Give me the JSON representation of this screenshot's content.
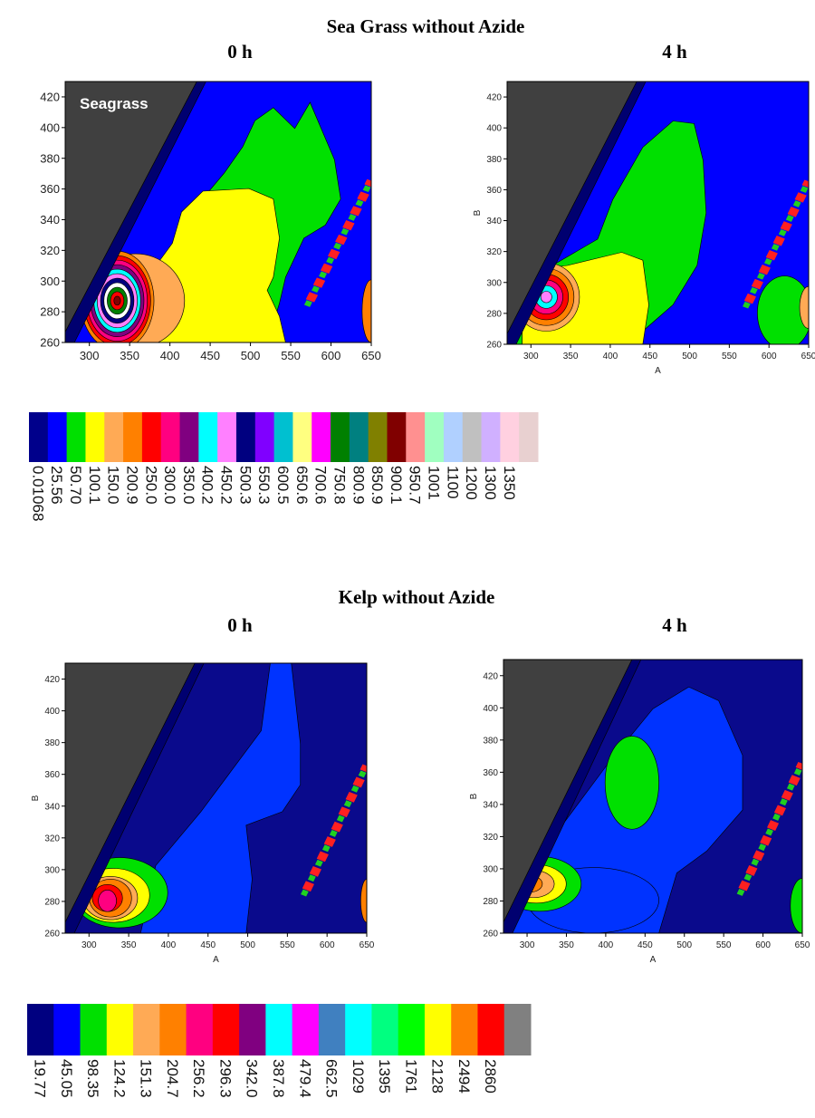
{
  "sections": [
    {
      "title": "Sea Grass without Azide",
      "panels": [
        {
          "title": "0 h",
          "annotation": "Seagrass",
          "xlim": [
            270,
            650
          ],
          "ylim": [
            260,
            430
          ],
          "xticks": [
            300,
            350,
            400,
            450,
            500,
            550,
            600,
            650
          ],
          "yticks": [
            260,
            280,
            300,
            320,
            340,
            360,
            380,
            400,
            420
          ]
        },
        {
          "title": "4 h",
          "xlabel": "A",
          "ylabel": "B",
          "xlim": [
            270,
            650
          ],
          "ylim": [
            260,
            430
          ],
          "xticks": [
            300,
            350,
            400,
            450,
            500,
            550,
            600,
            650
          ],
          "yticks": [
            260,
            280,
            300,
            320,
            340,
            360,
            380,
            400,
            420
          ]
        }
      ],
      "colorbar": {
        "colors": [
          "#00008b",
          "#0000ff",
          "#00e000",
          "#ffff00",
          "#ffaa55",
          "#ff8000",
          "#ff0000",
          "#ff0080",
          "#800080",
          "#00ffff",
          "#ff80ff",
          "#000080",
          "#8000ff",
          "#00c0d0",
          "#ffff80",
          "#ff00ff",
          "#008000",
          "#008080",
          "#808000",
          "#800000",
          "#ff9090",
          "#a0ffc0",
          "#b0d0ff",
          "#c0c0c0",
          "#d0b0ff",
          "#ffd0e0",
          "#e8d0d0"
        ],
        "labels": [
          "0.01068",
          "25.56",
          "50.70",
          "100.1",
          "150.0",
          "200.9",
          "250.0",
          "300.0",
          "350.0",
          "400.2",
          "450.2",
          "500.3",
          "550.3",
          "600.5",
          "650.6",
          "700.6",
          "750.8",
          "800.9",
          "850.9",
          "900.1",
          "950.7",
          "1001",
          "1100",
          "1200",
          "1300",
          "1350"
        ]
      }
    },
    {
      "title": "Kelp without Azide",
      "panels": [
        {
          "title": "0 h",
          "xlabel": "A",
          "ylabel": "B",
          "xlim": [
            270,
            650
          ],
          "ylim": [
            260,
            430
          ],
          "xticks": [
            300,
            350,
            400,
            450,
            500,
            550,
            600,
            650
          ],
          "yticks": [
            260,
            280,
            300,
            320,
            340,
            360,
            380,
            400,
            420
          ]
        },
        {
          "title": "4 h",
          "xlabel": "A",
          "ylabel": "B",
          "xlim": [
            270,
            650
          ],
          "ylim": [
            260,
            430
          ],
          "xticks": [
            300,
            350,
            400,
            450,
            500,
            550,
            600,
            650
          ],
          "yticks": [
            260,
            280,
            300,
            320,
            340,
            360,
            380,
            400,
            420
          ]
        }
      ],
      "colorbar": {
        "colors": [
          "#000080",
          "#0000ff",
          "#00e000",
          "#ffff00",
          "#ffaa55",
          "#ff8000",
          "#ff0080",
          "#ff0000",
          "#800080",
          "#00ffff",
          "#ff00ff",
          "#4080c0",
          "#00ffff",
          "#00ff80",
          "#00ff00",
          "#ffff00",
          "#ff8000",
          "#ff0000",
          "#808080"
        ],
        "labels": [
          "19.77",
          "45.05",
          "98.35",
          "124.2",
          "151.3",
          "204.7",
          "256.2",
          "296.3",
          "342.0",
          "387.8",
          "479.4",
          "662.5",
          "1029",
          "1395",
          "1761",
          "2128",
          "2494",
          "2860"
        ]
      }
    }
  ]
}
